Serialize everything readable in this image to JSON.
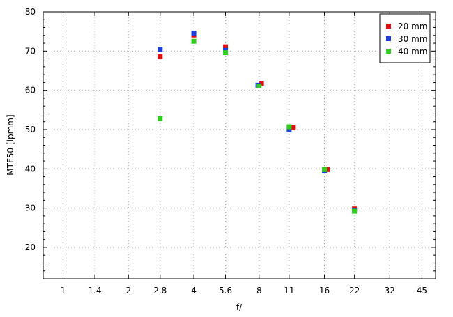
{
  "chart_data": {
    "type": "scatter",
    "title": "",
    "xlabel": "f/",
    "ylabel": "MTF50 [lpmm]",
    "x_scale": "log",
    "x_ticks": [
      "1",
      "1.4",
      "2",
      "2.8",
      "4",
      "5.6",
      "8",
      "11",
      "16",
      "22",
      "32",
      "45"
    ],
    "xlim": [
      0.81,
      52
    ],
    "ylim": [
      12,
      80
    ],
    "y_ticks": [
      20,
      30,
      40,
      50,
      60,
      70,
      80
    ],
    "grid": true,
    "legend_position": "top-right",
    "series": [
      {
        "name": "20 mm",
        "color": "#dd1111",
        "points": [
          [
            2.8,
            68.6
          ],
          [
            4,
            74.1
          ],
          [
            5.6,
            71.1
          ],
          [
            8.2,
            61.8
          ],
          [
            11.5,
            50.6
          ],
          [
            16.5,
            39.8
          ],
          [
            22,
            29.8
          ]
        ]
      },
      {
        "name": "30 mm",
        "color": "#1c3fd9",
        "points": [
          [
            2.8,
            70.4
          ],
          [
            4,
            74.6
          ],
          [
            5.6,
            70.2
          ],
          [
            7.9,
            61.3
          ],
          [
            11,
            50.1
          ],
          [
            16,
            39.5
          ],
          [
            22,
            29.4
          ]
        ]
      },
      {
        "name": "40 mm",
        "color": "#33cc22",
        "points": [
          [
            2.8,
            52.8
          ],
          [
            4,
            72.5
          ],
          [
            5.6,
            69.6
          ],
          [
            8,
            61.1
          ],
          [
            11,
            50.7
          ],
          [
            16,
            39.8
          ],
          [
            22,
            29.2
          ]
        ]
      }
    ]
  }
}
